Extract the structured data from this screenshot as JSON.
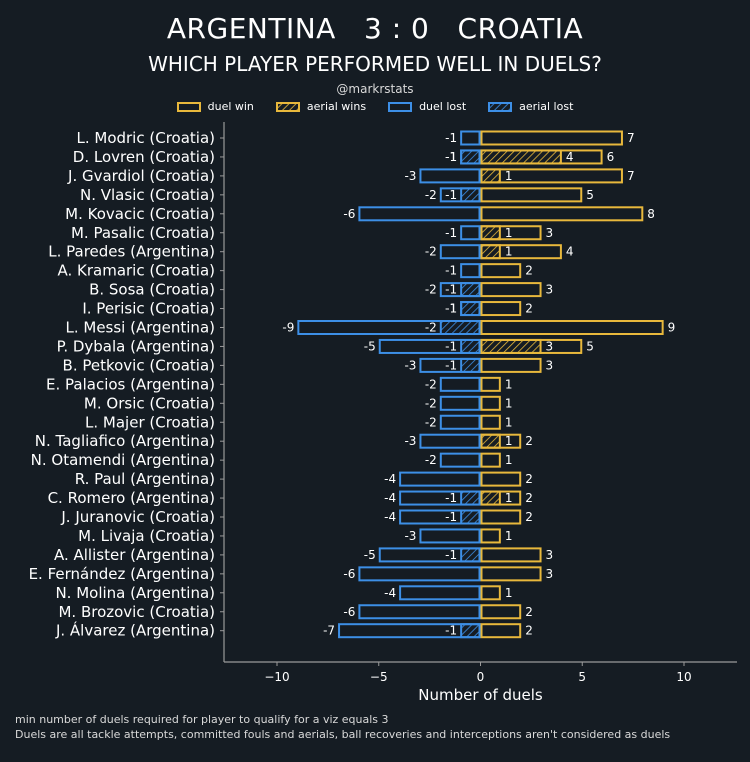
{
  "header": {
    "title": "ARGENTINA   3 : 0   CROATIA",
    "subtitle": "WHICH PLAYER PERFORMED WELL IN DUELS?",
    "credit": "@markrstats"
  },
  "footer": {
    "note1": "min number of duels required for player to qualify for a viz equals 3",
    "note2": "Duels are all tackle attempts, committed fouls and aerials, ball recoveries and interceptions aren't considered as duels"
  },
  "colors": {
    "win": "#e8b83c",
    "lost": "#3d8fe6",
    "background": "#151c23",
    "axis": "#9a9a9a"
  },
  "chart_data": {
    "type": "bar",
    "orientation": "horizontal",
    "xlabel": "Number of duels",
    "xlim": [
      -12.5,
      12.5
    ],
    "xticks": [
      -10,
      -5,
      0,
      5,
      10
    ],
    "legend": [
      "duel win",
      "aerial wins",
      "duel lost",
      "aerial lost"
    ],
    "players": [
      {
        "name": "L. Modric (Croatia)",
        "duel_win": 7,
        "aerial_win": 0,
        "duel_lost": -1,
        "aerial_lost": 0
      },
      {
        "name": "D. Lovren (Croatia)",
        "duel_win": 6,
        "aerial_win": 4,
        "duel_lost": -1,
        "aerial_lost": -1
      },
      {
        "name": "J. Gvardiol (Croatia)",
        "duel_win": 7,
        "aerial_win": 1,
        "duel_lost": -3,
        "aerial_lost": 0
      },
      {
        "name": "N. Vlasic (Croatia)",
        "duel_win": 5,
        "aerial_win": 0,
        "duel_lost": -2,
        "aerial_lost": -1
      },
      {
        "name": "M. Kovacic (Croatia)",
        "duel_win": 8,
        "aerial_win": 0,
        "duel_lost": -6,
        "aerial_lost": 0
      },
      {
        "name": "M. Pasalic (Croatia)",
        "duel_win": 3,
        "aerial_win": 1,
        "duel_lost": -1,
        "aerial_lost": 0
      },
      {
        "name": "L. Paredes (Argentina)",
        "duel_win": 4,
        "aerial_win": 1,
        "duel_lost": -2,
        "aerial_lost": 0
      },
      {
        "name": "A. Kramaric (Croatia)",
        "duel_win": 2,
        "aerial_win": 0,
        "duel_lost": -1,
        "aerial_lost": 0
      },
      {
        "name": "B. Sosa (Croatia)",
        "duel_win": 3,
        "aerial_win": 0,
        "duel_lost": -2,
        "aerial_lost": -1
      },
      {
        "name": "I. Perisic (Croatia)",
        "duel_win": 2,
        "aerial_win": 0,
        "duel_lost": -1,
        "aerial_lost": -1
      },
      {
        "name": "L. Messi (Argentina)",
        "duel_win": 9,
        "aerial_win": 0,
        "duel_lost": -9,
        "aerial_lost": -2
      },
      {
        "name": "P. Dybala (Argentina)",
        "duel_win": 5,
        "aerial_win": 3,
        "duel_lost": -5,
        "aerial_lost": -1
      },
      {
        "name": "B. Petkovic (Croatia)",
        "duel_win": 3,
        "aerial_win": 0,
        "duel_lost": -3,
        "aerial_lost": -1
      },
      {
        "name": "E. Palacios (Argentina)",
        "duel_win": 1,
        "aerial_win": 0,
        "duel_lost": -2,
        "aerial_lost": 0
      },
      {
        "name": "M. Orsic (Croatia)",
        "duel_win": 1,
        "aerial_win": 0,
        "duel_lost": -2,
        "aerial_lost": 0
      },
      {
        "name": "L. Majer (Croatia)",
        "duel_win": 1,
        "aerial_win": 0,
        "duel_lost": -2,
        "aerial_lost": 0
      },
      {
        "name": "N. Tagliafico (Argentina)",
        "duel_win": 2,
        "aerial_win": 1,
        "duel_lost": -3,
        "aerial_lost": 0
      },
      {
        "name": "N. Otamendi (Argentina)",
        "duel_win": 1,
        "aerial_win": 0,
        "duel_lost": -2,
        "aerial_lost": 0
      },
      {
        "name": "R. Paul (Argentina)",
        "duel_win": 2,
        "aerial_win": 0,
        "duel_lost": -4,
        "aerial_lost": 0
      },
      {
        "name": "C. Romero (Argentina)",
        "duel_win": 2,
        "aerial_win": 1,
        "duel_lost": -4,
        "aerial_lost": -1
      },
      {
        "name": "J. Juranovic (Croatia)",
        "duel_win": 2,
        "aerial_win": 0,
        "duel_lost": -4,
        "aerial_lost": -1
      },
      {
        "name": "M. Livaja (Croatia)",
        "duel_win": 1,
        "aerial_win": 0,
        "duel_lost": -3,
        "aerial_lost": 0
      },
      {
        "name": "A. Allister (Argentina)",
        "duel_win": 3,
        "aerial_win": 0,
        "duel_lost": -5,
        "aerial_lost": -1
      },
      {
        "name": "E. Fernández (Argentina)",
        "duel_win": 3,
        "aerial_win": 0,
        "duel_lost": -6,
        "aerial_lost": 0
      },
      {
        "name": "N. Molina (Argentina)",
        "duel_win": 1,
        "aerial_win": 0,
        "duel_lost": -4,
        "aerial_lost": 0
      },
      {
        "name": "M. Brozovic (Croatia)",
        "duel_win": 2,
        "aerial_win": 0,
        "duel_lost": -6,
        "aerial_lost": 0
      },
      {
        "name": "J. Álvarez (Argentina)",
        "duel_win": 2,
        "aerial_win": 0,
        "duel_lost": -7,
        "aerial_lost": -1
      }
    ]
  }
}
